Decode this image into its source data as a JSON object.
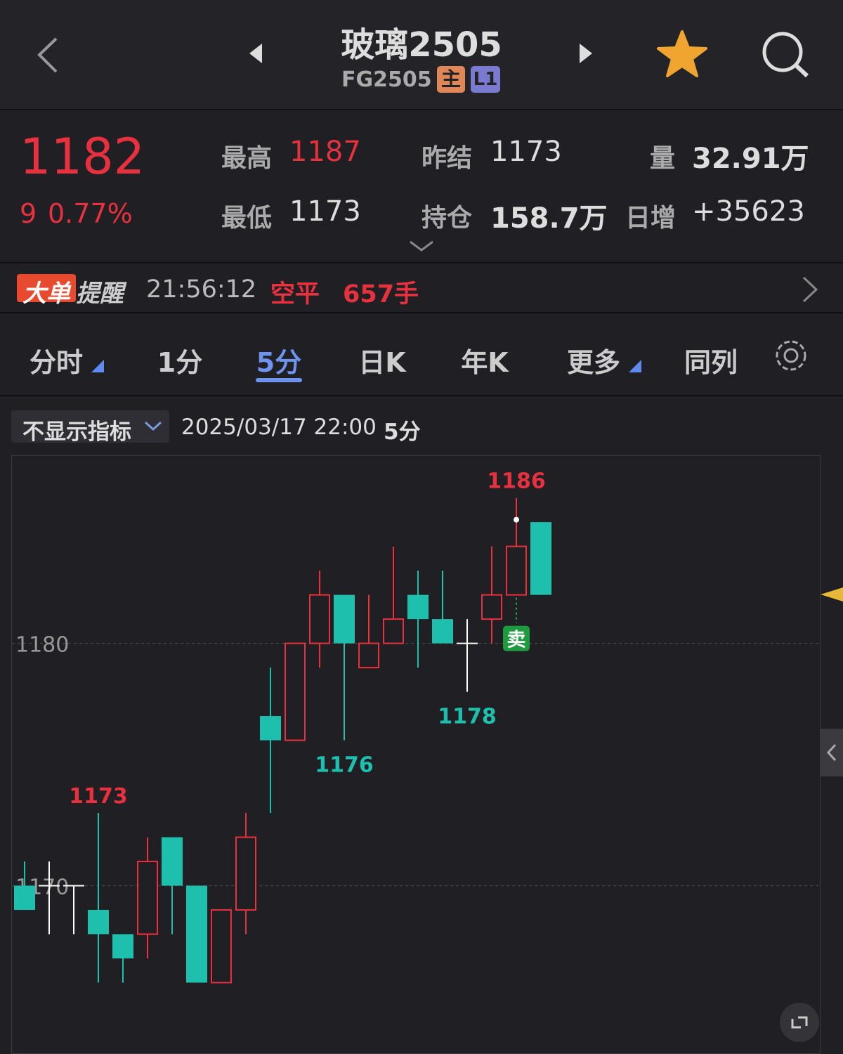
{
  "header": {
    "title": "玻璃2505",
    "code": "FG2505",
    "badges": [
      "主",
      "L1"
    ]
  },
  "quote": {
    "price": "1182",
    "change": "9",
    "change_pct": "0.77%",
    "fields": [
      [
        "最高",
        "1187"
      ],
      [
        "昨结",
        "1173"
      ],
      [
        "量",
        "32.91万"
      ],
      [
        "最低",
        "1173"
      ],
      [
        "持仓",
        "158.7万"
      ],
      [
        "日增",
        "+35623"
      ]
    ]
  },
  "alert": {
    "tag1": "大单",
    "tag2": "提醒",
    "time": "21:56:12",
    "action": "空平",
    "volume": "657手"
  },
  "tabs": {
    "items": [
      "分时",
      "1分",
      "5分",
      "日K",
      "年K",
      "更多",
      "同列"
    ],
    "active": 2
  },
  "toolbar": {
    "indicator": "不显示指标",
    "datetime": "2025/03/17 22:00",
    "period": "5分"
  },
  "chart_data": {
    "type": "candlestick",
    "signal": "卖",
    "categories": [
      null,
      null,
      null,
      null,
      null,
      null,
      null,
      null,
      null,
      null,
      null,
      null,
      null,
      null,
      null,
      null,
      null,
      null,
      null,
      null,
      null,
      null
    ],
    "open": [
      1170,
      1170,
      1170,
      1169,
      1168,
      1168,
      1172,
      1170,
      1166,
      1169,
      1177,
      1176,
      1180,
      1182,
      1179,
      1180,
      1182,
      1181,
      1180,
      1181,
      1182,
      1185
    ],
    "high": [
      1171,
      1171,
      1170,
      1173,
      1168,
      1172,
      1172,
      1170,
      1169,
      1173,
      1179,
      1180,
      1183,
      1182,
      1182,
      1184,
      1183,
      1183,
      1181,
      1184,
      1186,
      1185
    ],
    "low": [
      1169,
      1168,
      1168,
      1166,
      1166,
      1167,
      1168,
      1166,
      1166,
      1168,
      1173,
      1176,
      1179,
      1176,
      1179,
      1180,
      1179,
      1180,
      1178,
      1180,
      1182,
      1182
    ],
    "close": [
      1169,
      1170,
      1170,
      1168,
      1167,
      1171,
      1170,
      1166,
      1169,
      1172,
      1176,
      1180,
      1182,
      1180,
      1180,
      1181,
      1181,
      1180,
      1180,
      1182,
      1184,
      1182
    ],
    "colors": {
      "up": "#e8313f",
      "down": "#1fbfae",
      "flat": "#ffffff"
    },
    "ylim": [
      1163.2,
      1187.7
    ],
    "yticks": [
      1170,
      1180
    ],
    "grid": true
  }
}
